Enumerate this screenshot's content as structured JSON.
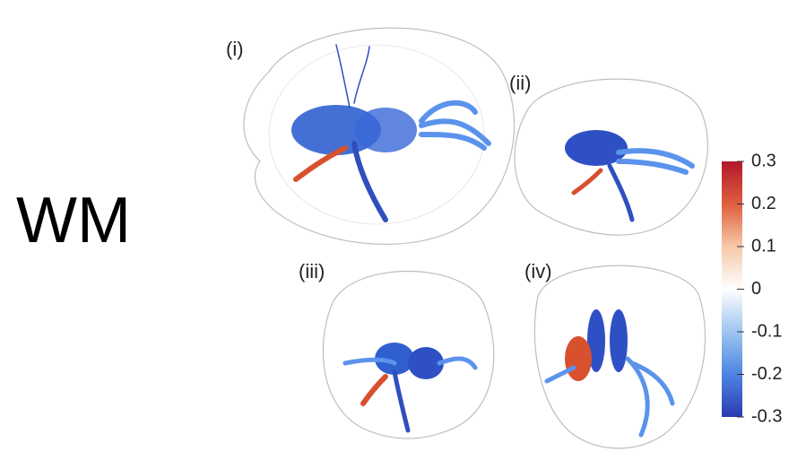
{
  "row_label": "WM",
  "panels": [
    "(i)",
    "(ii)",
    "(iii)",
    "(iv)"
  ],
  "colorbar": {
    "lim": [
      -0.3,
      0.3
    ],
    "ticks": [
      0.3,
      0.2,
      0.1,
      0,
      -0.1,
      -0.2,
      -0.3
    ]
  }
}
